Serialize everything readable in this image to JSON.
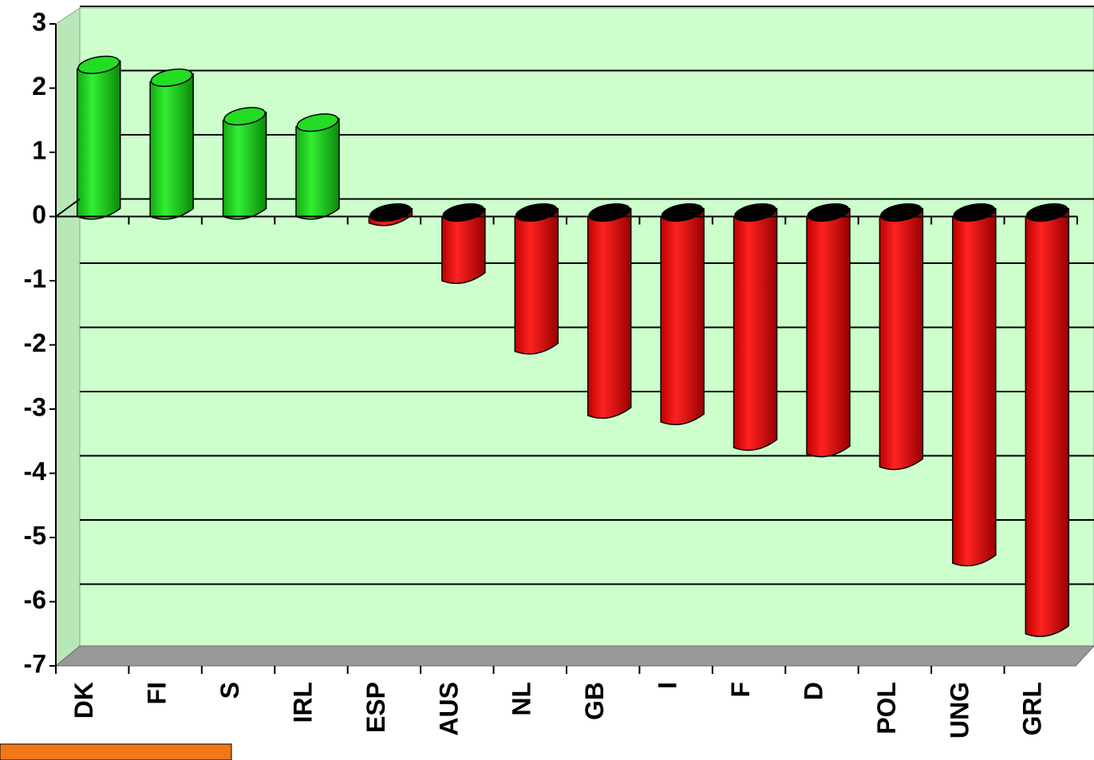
{
  "chart_data": {
    "type": "bar",
    "categories": [
      "DK",
      "FI",
      "S",
      "IRL",
      "ESP",
      "AUS",
      "NL",
      "GB",
      "I",
      "F",
      "D",
      "POL",
      "UNG",
      "GRL"
    ],
    "values": [
      2.3,
      2.1,
      1.5,
      1.4,
      -0.1,
      -1.0,
      -2.1,
      -3.1,
      -3.2,
      -3.6,
      -3.7,
      -3.9,
      -5.4,
      -6.5
    ],
    "positive_color": "#22dd22",
    "negative_color": "#ee1111",
    "ylim": [
      -7,
      3
    ],
    "yticks": [
      -7,
      -6,
      -5,
      -4,
      -3,
      -2,
      -1,
      0,
      1,
      2,
      3
    ],
    "grid": true
  }
}
